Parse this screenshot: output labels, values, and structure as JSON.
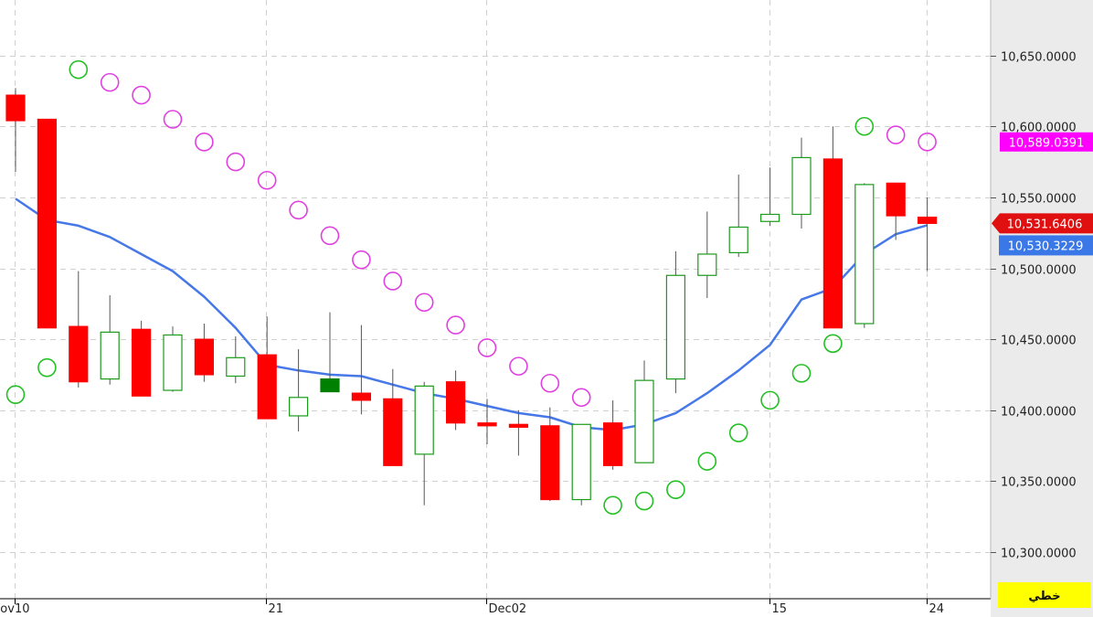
{
  "chart_data": {
    "type": "candlestick",
    "indicators": [
      "moving-average",
      "parabolic-sar"
    ],
    "ylim": [
      10270,
      10690
    ],
    "y_ticks": [
      "10,300.0000",
      "10,350.0000",
      "10,400.0000",
      "10,450.0000",
      "10,500.0000",
      "10,550.0000",
      "10,600.0000",
      "10,650.0000"
    ],
    "y_tick_values": [
      10300,
      10350,
      10400,
      10450,
      10500,
      10550,
      10600,
      10650
    ],
    "x_ticks": [
      {
        "label": "ov10",
        "index": 0
      },
      {
        "label": "21",
        "index": 8
      },
      {
        "label": "Dec02",
        "index": 15
      },
      {
        "label": "15",
        "index": 24
      },
      {
        "label": "24",
        "index": 29
      }
    ],
    "candles": [
      {
        "o": 10622,
        "h": 10627,
        "l": 10568,
        "c": 10604
      },
      {
        "o": 10605,
        "h": 10605,
        "l": 10458,
        "c": 10458
      },
      {
        "o": 10459,
        "h": 10498,
        "l": 10416,
        "c": 10420
      },
      {
        "o": 10422,
        "h": 10481,
        "l": 10418,
        "c": 10455
      },
      {
        "o": 10457,
        "h": 10463,
        "l": 10410,
        "c": 10410
      },
      {
        "o": 10414,
        "h": 10459,
        "l": 10413,
        "c": 10453
      },
      {
        "o": 10450,
        "h": 10461,
        "l": 10420,
        "c": 10425
      },
      {
        "o": 10424,
        "h": 10452,
        "l": 10419,
        "c": 10437
      },
      {
        "o": 10439,
        "h": 10466,
        "l": 10394,
        "c": 10394
      },
      {
        "o": 10396,
        "h": 10443,
        "l": 10385,
        "c": 10409
      },
      {
        "o": 10413,
        "h": 10469,
        "l": 10413,
        "c": 10422,
        "filled": true
      },
      {
        "o": 10412,
        "h": 10460,
        "l": 10397,
        "c": 10407
      },
      {
        "o": 10408,
        "h": 10429,
        "l": 10361,
        "c": 10361
      },
      {
        "o": 10369,
        "h": 10420,
        "l": 10333,
        "c": 10417
      },
      {
        "o": 10420,
        "h": 10428,
        "l": 10386,
        "c": 10391
      },
      {
        "o": 10391,
        "h": 10408,
        "l": 10376,
        "c": 10389
      },
      {
        "o": 10390,
        "h": 10400,
        "l": 10368,
        "c": 10388
      },
      {
        "o": 10389,
        "h": 10402,
        "l": 10336,
        "c": 10337
      },
      {
        "o": 10337,
        "h": 10390,
        "l": 10333,
        "c": 10390
      },
      {
        "o": 10391,
        "h": 10407,
        "l": 10358,
        "c": 10361
      },
      {
        "o": 10363,
        "h": 10435,
        "l": 10363,
        "c": 10421
      },
      {
        "o": 10422,
        "h": 10512,
        "l": 10412,
        "c": 10495
      },
      {
        "o": 10495,
        "h": 10540,
        "l": 10479,
        "c": 10510
      },
      {
        "o": 10511,
        "h": 10566,
        "l": 10508,
        "c": 10529
      },
      {
        "o": 10533,
        "h": 10571,
        "l": 10530,
        "c": 10538
      },
      {
        "o": 10538,
        "h": 10592,
        "l": 10528,
        "c": 10578
      },
      {
        "o": 10577,
        "h": 10600,
        "l": 10458,
        "c": 10458
      },
      {
        "o": 10461,
        "h": 10560,
        "l": 10458,
        "c": 10559
      },
      {
        "o": 10560,
        "h": 10560,
        "l": 10520,
        "c": 10537
      },
      {
        "o": 10536,
        "h": 10550,
        "l": 10498,
        "c": 10531.6406
      }
    ],
    "moving_average": [
      10549,
      10534,
      10530,
      10522,
      10510,
      10498,
      10480,
      10458,
      10432,
      10428,
      10425,
      10424,
      10418,
      10412,
      10408,
      10403,
      10398,
      10395,
      10388,
      10386,
      10390,
      10398,
      10412,
      10428,
      10446,
      10478,
      10486,
      10510,
      10524,
      10530.3229
    ],
    "sar": [
      10411,
      10430,
      10640,
      10631,
      10622,
      10605,
      10589,
      10575,
      10562,
      10541,
      10523,
      10506,
      10491,
      10476,
      10460,
      10444,
      10431,
      10419,
      10409,
      10333,
      10336,
      10344,
      10364,
      10384,
      10407,
      10426,
      10447,
      10600,
      10594,
      10589.0391
    ],
    "sar_trend": [
      "up",
      "up",
      "up",
      "down",
      "down",
      "down",
      "down",
      "down",
      "down",
      "down",
      "down",
      "down",
      "down",
      "down",
      "down",
      "down",
      "down",
      "down",
      "down",
      "up",
      "up",
      "up",
      "up",
      "up",
      "up",
      "up",
      "up",
      "up",
      "down",
      "down"
    ],
    "last_labels": {
      "sar": "10,589.0391",
      "close": "10,531.6406",
      "ma": "10,530.3229"
    },
    "mode_label": "خطي",
    "colors": {
      "bull": "#1a9b1a",
      "bear": "#ff0000",
      "bull_filled": "#008000",
      "ma": "#4678e8",
      "sar_up": "#22c022",
      "sar_down": "#e040e0",
      "sar_tag": "#ff00ff",
      "close_tag": "#e01010",
      "ma_tag": "#3a78e8",
      "grid": "#d0d0d0",
      "axis_bg": "#ebebeb",
      "mode_bg": "#ffff00"
    }
  }
}
